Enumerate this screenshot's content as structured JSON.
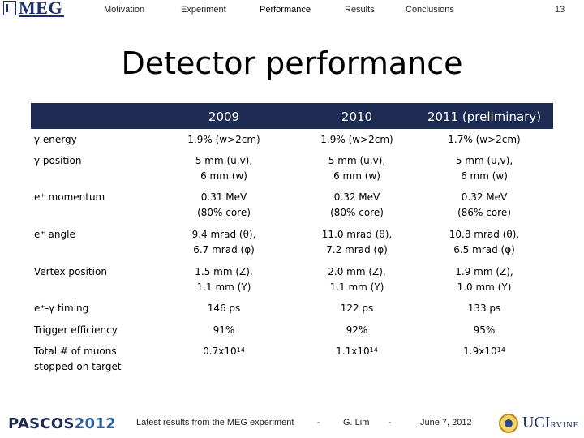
{
  "logo": {
    "text": "MEG"
  },
  "nav": {
    "items": [
      "Motivation",
      "Experiment",
      "Performance",
      "Results",
      "Conclusions"
    ],
    "page_number": "13"
  },
  "title": "Detector performance",
  "table": {
    "columns": [
      "",
      "2009",
      "2010",
      "2011 (preliminary)"
    ],
    "rows": [
      {
        "label": [
          "γ energy"
        ],
        "c1": [
          "1.9% (w>2cm)"
        ],
        "c2": [
          "1.9% (w>2cm)"
        ],
        "c3": [
          "1.7% (w>2cm)"
        ]
      },
      {
        "label": [
          "γ position"
        ],
        "c1": [
          "5 mm (u,v),",
          "6 mm (w)"
        ],
        "c2": [
          "5 mm (u,v),",
          "6 mm (w)"
        ],
        "c3": [
          "5 mm (u,v),",
          "6 mm (w)"
        ]
      },
      {
        "label": [
          "e⁺ momentum"
        ],
        "c1": [
          "0.31 MeV",
          "(80% core)"
        ],
        "c2": [
          "0.32 MeV",
          "(80% core)"
        ],
        "c3": [
          "0.32 MeV",
          "(86% core)"
        ]
      },
      {
        "label": [
          "e⁺ angle"
        ],
        "c1": [
          "9.4 mrad (θ),",
          "6.7 mrad (φ)"
        ],
        "c2": [
          "11.0 mrad (θ),",
          "7.2 mrad (φ)"
        ],
        "c3": [
          "10.8 mrad (θ),",
          "6.5 mrad (φ)"
        ]
      },
      {
        "label": [
          "Vertex position"
        ],
        "c1": [
          "1.5 mm (Z),",
          "1.1 mm (Y)"
        ],
        "c2": [
          "2.0 mm (Z),",
          "1.1 mm (Y)"
        ],
        "c3": [
          "1.9 mm (Z),",
          "1.0 mm (Y)"
        ]
      },
      {
        "label": [
          "e⁺-γ timing"
        ],
        "c1": [
          "146 ps"
        ],
        "c2": [
          "122 ps"
        ],
        "c3": [
          "133 ps"
        ]
      },
      {
        "label": [
          "Trigger efficiency"
        ],
        "c1": [
          "91%"
        ],
        "c2": [
          "92%"
        ],
        "c3": [
          "95%"
        ]
      },
      {
        "label": [
          "Total # of muons",
          "stopped on target"
        ],
        "c1": [
          "0.7x10",
          "14"
        ],
        "c2": [
          "1.1x10",
          "14"
        ],
        "c3": [
          "1.9x10",
          "14"
        ]
      }
    ]
  },
  "footer": {
    "conference_a": "PASCOS",
    "conference_b": "2012",
    "caption": "Latest results from the MEG experiment",
    "dash1": "-",
    "author": "G. Lim",
    "dash2": "-",
    "date": "June 7, 2012",
    "uci_a": "UCI",
    "uci_b": "RVINE"
  },
  "colors": {
    "header_bg": "#1e2b52",
    "brand_blue": "#1b2f6b",
    "seal_gold": "#f3d36a"
  }
}
